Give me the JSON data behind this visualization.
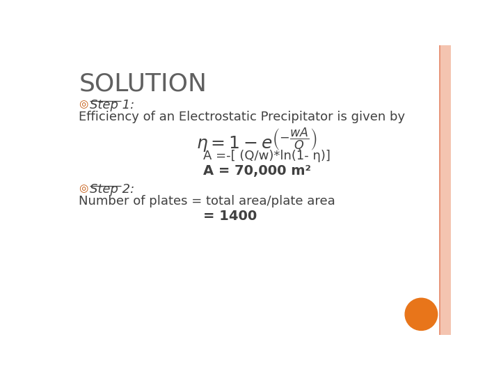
{
  "background_color": "#ffffff",
  "border_light": "#f4c4b0",
  "border_dark": "#e8967a",
  "title": "SOLUTION",
  "title_color": "#606060",
  "title_fontsize": 26,
  "step1_bullet_color": "#c55a11",
  "step1_label": "Step 1:",
  "step1_desc": "Efficiency of an Electrostatic Precipitator is given by",
  "step1_formula": "$\\eta = 1 - e^{\\left(-\\dfrac{wA}{Q}\\right)}$",
  "step1_line2": "A =-[ (Q/w)*ln(1- η)]",
  "step1_line3": "A = 70,000 m²",
  "step2_label": "Step 2:",
  "step2_desc": "Number of plates = total area/plate area",
  "step2_result": "= 1400",
  "circle_color": "#e8751a",
  "text_color": "#404040",
  "bullet_char": "◎"
}
